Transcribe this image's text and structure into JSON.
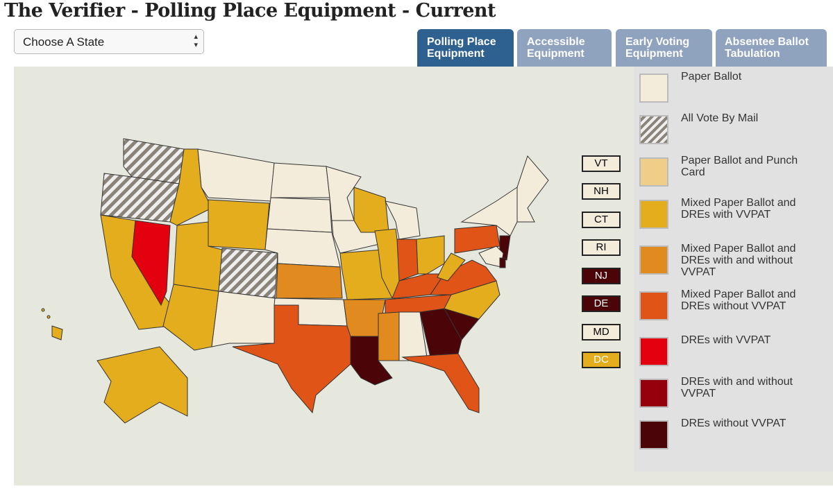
{
  "header": {
    "title": "The Verifier - Polling Place Equipment - Current"
  },
  "state_select": {
    "placeholder": "Choose A State"
  },
  "tabs": [
    "Polling Place Equipment",
    "Accessible Equipment",
    "Early Voting Equipment",
    "Absentee Ballot Tabulation"
  ],
  "small_states": [
    "VT",
    "NH",
    "CT",
    "RI",
    "NJ",
    "DE",
    "MD",
    "DC"
  ],
  "legend": [
    "Paper Ballot",
    "All Vote By Mail",
    "Paper Ballot and Punch Card",
    "Mixed Paper Ballot and DREs with VVPAT",
    "Mixed Paper Ballot and DREs with and without VVPAT",
    "Mixed Paper Ballot and DREs without VVPAT",
    "DREs with VVPAT",
    "DREs with and without VVPAT",
    "DREs without VVPAT"
  ]
}
